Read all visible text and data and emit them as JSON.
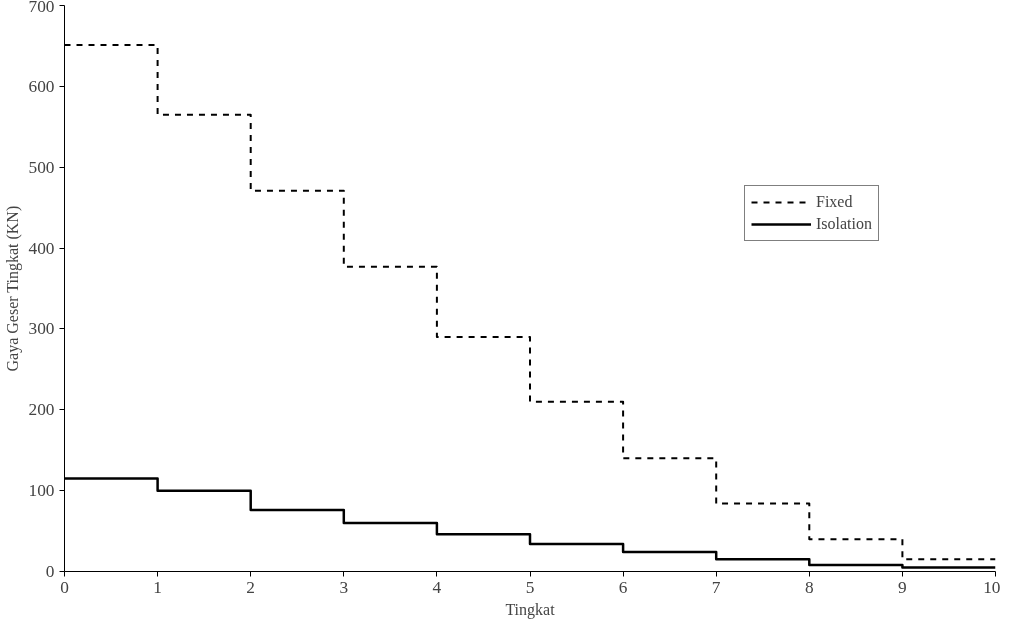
{
  "chart_data": {
    "type": "step",
    "xlabel": "Tingkat",
    "ylabel": "Gaya Geser Tingkat (KN)",
    "x": [
      0,
      1,
      2,
      3,
      4,
      5,
      6,
      7,
      8,
      9,
      10
    ],
    "xlim": [
      0,
      10
    ],
    "xticks": [
      0,
      1,
      2,
      3,
      4,
      5,
      6,
      7,
      8,
      9,
      10
    ],
    "ylim": [
      0,
      700
    ],
    "yticks": [
      0,
      100,
      200,
      300,
      400,
      500,
      600,
      700
    ],
    "series": [
      {
        "name": "Fixed",
        "color": "#000000",
        "line_style": "dashed",
        "values": [
          651,
          565,
          471,
          377,
          290,
          210,
          140,
          84,
          40,
          15,
          15
        ]
      },
      {
        "name": "Isolation",
        "color": "#000000",
        "line_style": "solid",
        "values": [
          115,
          100,
          76,
          60,
          46,
          34,
          24,
          15,
          8,
          5,
          5
        ]
      }
    ],
    "grid": false,
    "legend": "top right"
  }
}
